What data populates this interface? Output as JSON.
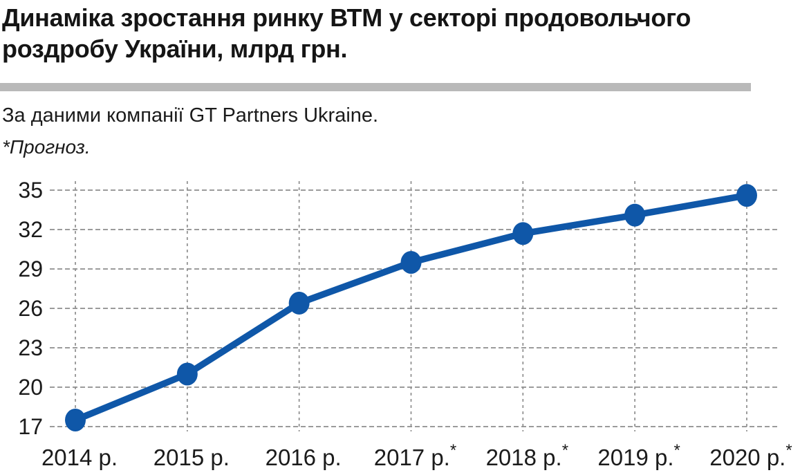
{
  "header": {
    "title": "Динаміка зростання ринку ВТМ у секторі продовольчого роздробу України, млрд грн.",
    "source_note": "За даними компанії GT Partners Ukraine.",
    "footnote": "*Прогноз."
  },
  "colors": {
    "line": "#0f57a8",
    "marker": "#0f57a8",
    "grid": "#8d8d8d",
    "axis_text": "#1b1b1b",
    "divider_bar": "#b9b9b9",
    "title_text": "#151515"
  },
  "chart_data": {
    "type": "line",
    "title": "Динаміка зростання ринку ВТМ у секторі продовольчого роздробу України, млрд грн.",
    "unit": "млрд грн",
    "categories": [
      "2014 р.",
      "2015 р.",
      "2016 р.",
      "2017 р.*",
      "2018 р.*",
      "2019 р.*",
      "2020 р.*"
    ],
    "values": [
      17.5,
      21.0,
      26.4,
      29.5,
      31.7,
      33.1,
      34.6
    ],
    "yticks": [
      17,
      20,
      23,
      26,
      29,
      32,
      35
    ],
    "ylim": [
      17,
      35
    ],
    "grid": "dashed-both",
    "legend": "none",
    "marker": "circle",
    "footnote_marker": "*",
    "source": "За даними компанії GT Partners Ukraine."
  }
}
